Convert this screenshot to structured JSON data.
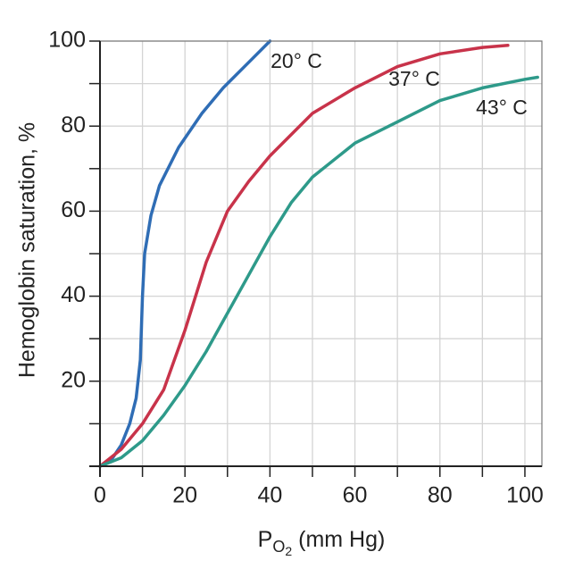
{
  "chart_data": {
    "type": "line",
    "y_label": "Hemoglobin saturation, %",
    "x_label": [
      "P",
      "O",
      "2",
      " (mm Hg)"
    ],
    "xlim": [
      0,
      104
    ],
    "ylim": [
      0,
      100
    ],
    "xticks": [
      0,
      20,
      40,
      60,
      80,
      100
    ],
    "x_minor_ticks": [
      10,
      30,
      50,
      70,
      90
    ],
    "yticks": [
      20,
      40,
      60,
      80,
      100
    ],
    "y_minor_ticks": [
      10,
      30,
      50,
      70,
      90
    ],
    "grid": true,
    "series": [
      {
        "name": "20° C",
        "color": "#2f6db5",
        "x": [
          0,
          3,
          5,
          7,
          8.5,
          9.5,
          10,
          10.5,
          12,
          14,
          18.5,
          24,
          29,
          35,
          40
        ],
        "values": [
          0,
          2,
          5,
          10,
          16,
          25,
          40,
          50,
          59,
          66,
          75,
          83,
          89,
          95,
          100
        ]
      },
      {
        "name": "37° C",
        "color": "#c8334a",
        "x": [
          0,
          5,
          10,
          15,
          20,
          25,
          30,
          35,
          40,
          50,
          60,
          70,
          80,
          90,
          96
        ],
        "values": [
          0,
          4,
          10,
          18,
          32,
          48,
          60,
          67,
          73,
          83,
          89,
          94,
          97,
          98.5,
          99
        ]
      },
      {
        "name": "43° C",
        "color": "#2e9a8a",
        "x": [
          0,
          5,
          10,
          15,
          20,
          25,
          30,
          35,
          40,
          45,
          50,
          60,
          70,
          80,
          90,
          100,
          103
        ],
        "values": [
          0,
          2,
          6,
          12,
          19,
          27,
          36,
          45,
          54,
          62,
          68,
          76,
          81,
          86,
          89,
          91,
          91.5
        ]
      }
    ]
  }
}
